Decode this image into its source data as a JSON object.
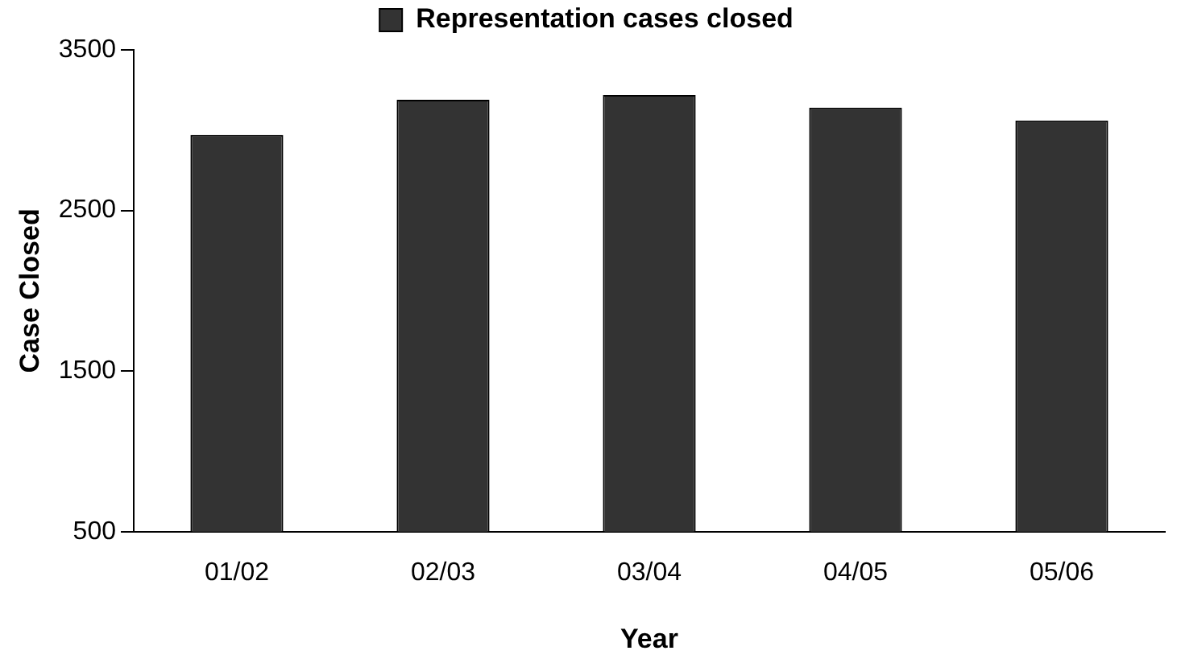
{
  "chart_data": {
    "type": "bar",
    "xlabel": "Year",
    "ylabel": "Case Closed",
    "categories": [
      "01/02",
      "02/03",
      "03/04",
      "04/05",
      "05/06"
    ],
    "series": [
      {
        "name": "Representation cases closed",
        "color": "#333333",
        "values": [
          2970,
          3190,
          3220,
          3140,
          3060
        ]
      }
    ],
    "ylim": [
      500,
      3500
    ],
    "yticks": [
      500,
      1500,
      2500,
      3500
    ],
    "grid": false,
    "legend": "top"
  }
}
